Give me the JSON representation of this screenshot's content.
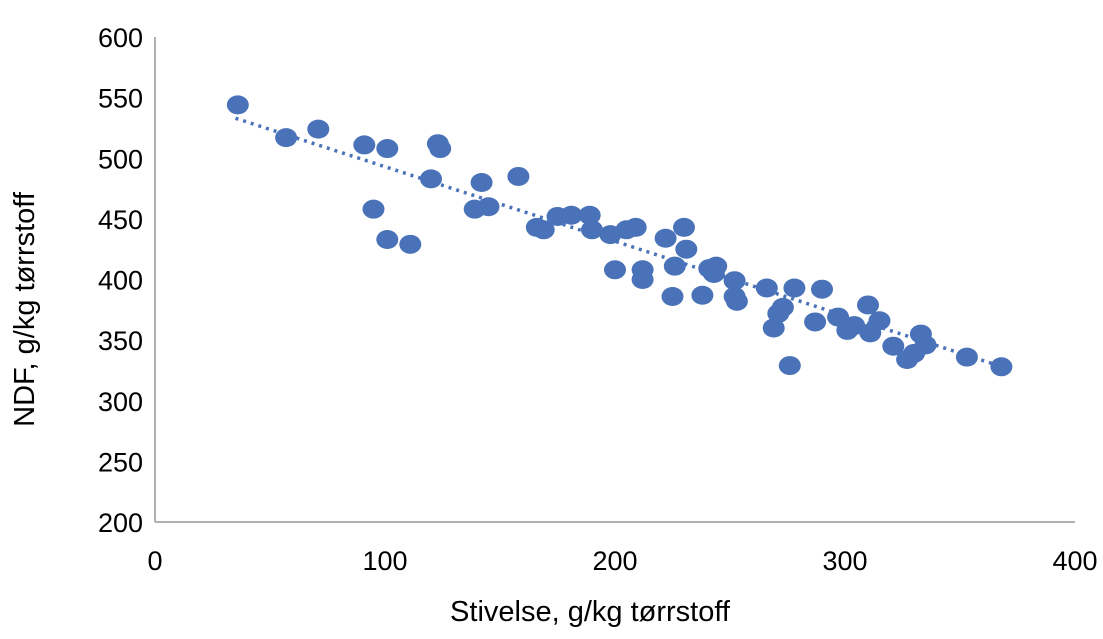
{
  "chart_data": {
    "type": "scatter",
    "xlabel": "Stivelse, g/kg tørrstoff",
    "ylabel": "NDF, g/kg tørrstoff",
    "xlim": [
      0,
      400
    ],
    "ylim": [
      200,
      600
    ],
    "x_ticks": [
      "0",
      "100",
      "200",
      "300",
      "400"
    ],
    "y_ticks": [
      "200",
      "250",
      "300",
      "350",
      "400",
      "450",
      "500",
      "550",
      "600"
    ],
    "grid": false,
    "marker_color": "#4a72b8",
    "trendline": {
      "style": "dotted",
      "color": "#4a72b8",
      "x": [
        35,
        370
      ],
      "y": [
        533,
        327
      ]
    },
    "points": [
      {
        "x": 36,
        "y": 544
      },
      {
        "x": 57,
        "y": 517
      },
      {
        "x": 71,
        "y": 524
      },
      {
        "x": 91,
        "y": 511
      },
      {
        "x": 101,
        "y": 508
      },
      {
        "x": 95,
        "y": 458
      },
      {
        "x": 101,
        "y": 433
      },
      {
        "x": 111,
        "y": 429
      },
      {
        "x": 120,
        "y": 483
      },
      {
        "x": 123,
        "y": 512
      },
      {
        "x": 124,
        "y": 508
      },
      {
        "x": 139,
        "y": 458
      },
      {
        "x": 142,
        "y": 480
      },
      {
        "x": 145,
        "y": 460
      },
      {
        "x": 158,
        "y": 485
      },
      {
        "x": 166,
        "y": 443
      },
      {
        "x": 169,
        "y": 441
      },
      {
        "x": 175,
        "y": 452
      },
      {
        "x": 181,
        "y": 453
      },
      {
        "x": 189,
        "y": 453
      },
      {
        "x": 190,
        "y": 441
      },
      {
        "x": 198,
        "y": 437
      },
      {
        "x": 200,
        "y": 408
      },
      {
        "x": 205,
        "y": 441
      },
      {
        "x": 209,
        "y": 443
      },
      {
        "x": 212,
        "y": 408
      },
      {
        "x": 212,
        "y": 400
      },
      {
        "x": 222,
        "y": 434
      },
      {
        "x": 225,
        "y": 386
      },
      {
        "x": 226,
        "y": 411
      },
      {
        "x": 230,
        "y": 443
      },
      {
        "x": 231,
        "y": 425
      },
      {
        "x": 238,
        "y": 387
      },
      {
        "x": 241,
        "y": 409
      },
      {
        "x": 243,
        "y": 405
      },
      {
        "x": 244,
        "y": 411
      },
      {
        "x": 252,
        "y": 399
      },
      {
        "x": 252,
        "y": 386
      },
      {
        "x": 253,
        "y": 382
      },
      {
        "x": 266,
        "y": 393
      },
      {
        "x": 269,
        "y": 360
      },
      {
        "x": 271,
        "y": 372
      },
      {
        "x": 273,
        "y": 377
      },
      {
        "x": 276,
        "y": 329
      },
      {
        "x": 278,
        "y": 393
      },
      {
        "x": 287,
        "y": 365
      },
      {
        "x": 290,
        "y": 392
      },
      {
        "x": 297,
        "y": 369
      },
      {
        "x": 301,
        "y": 358
      },
      {
        "x": 304,
        "y": 362
      },
      {
        "x": 310,
        "y": 379
      },
      {
        "x": 311,
        "y": 356
      },
      {
        "x": 315,
        "y": 366
      },
      {
        "x": 321,
        "y": 345
      },
      {
        "x": 327,
        "y": 334
      },
      {
        "x": 330,
        "y": 339
      },
      {
        "x": 333,
        "y": 355
      },
      {
        "x": 335,
        "y": 346
      },
      {
        "x": 353,
        "y": 336
      },
      {
        "x": 368,
        "y": 328
      }
    ]
  }
}
